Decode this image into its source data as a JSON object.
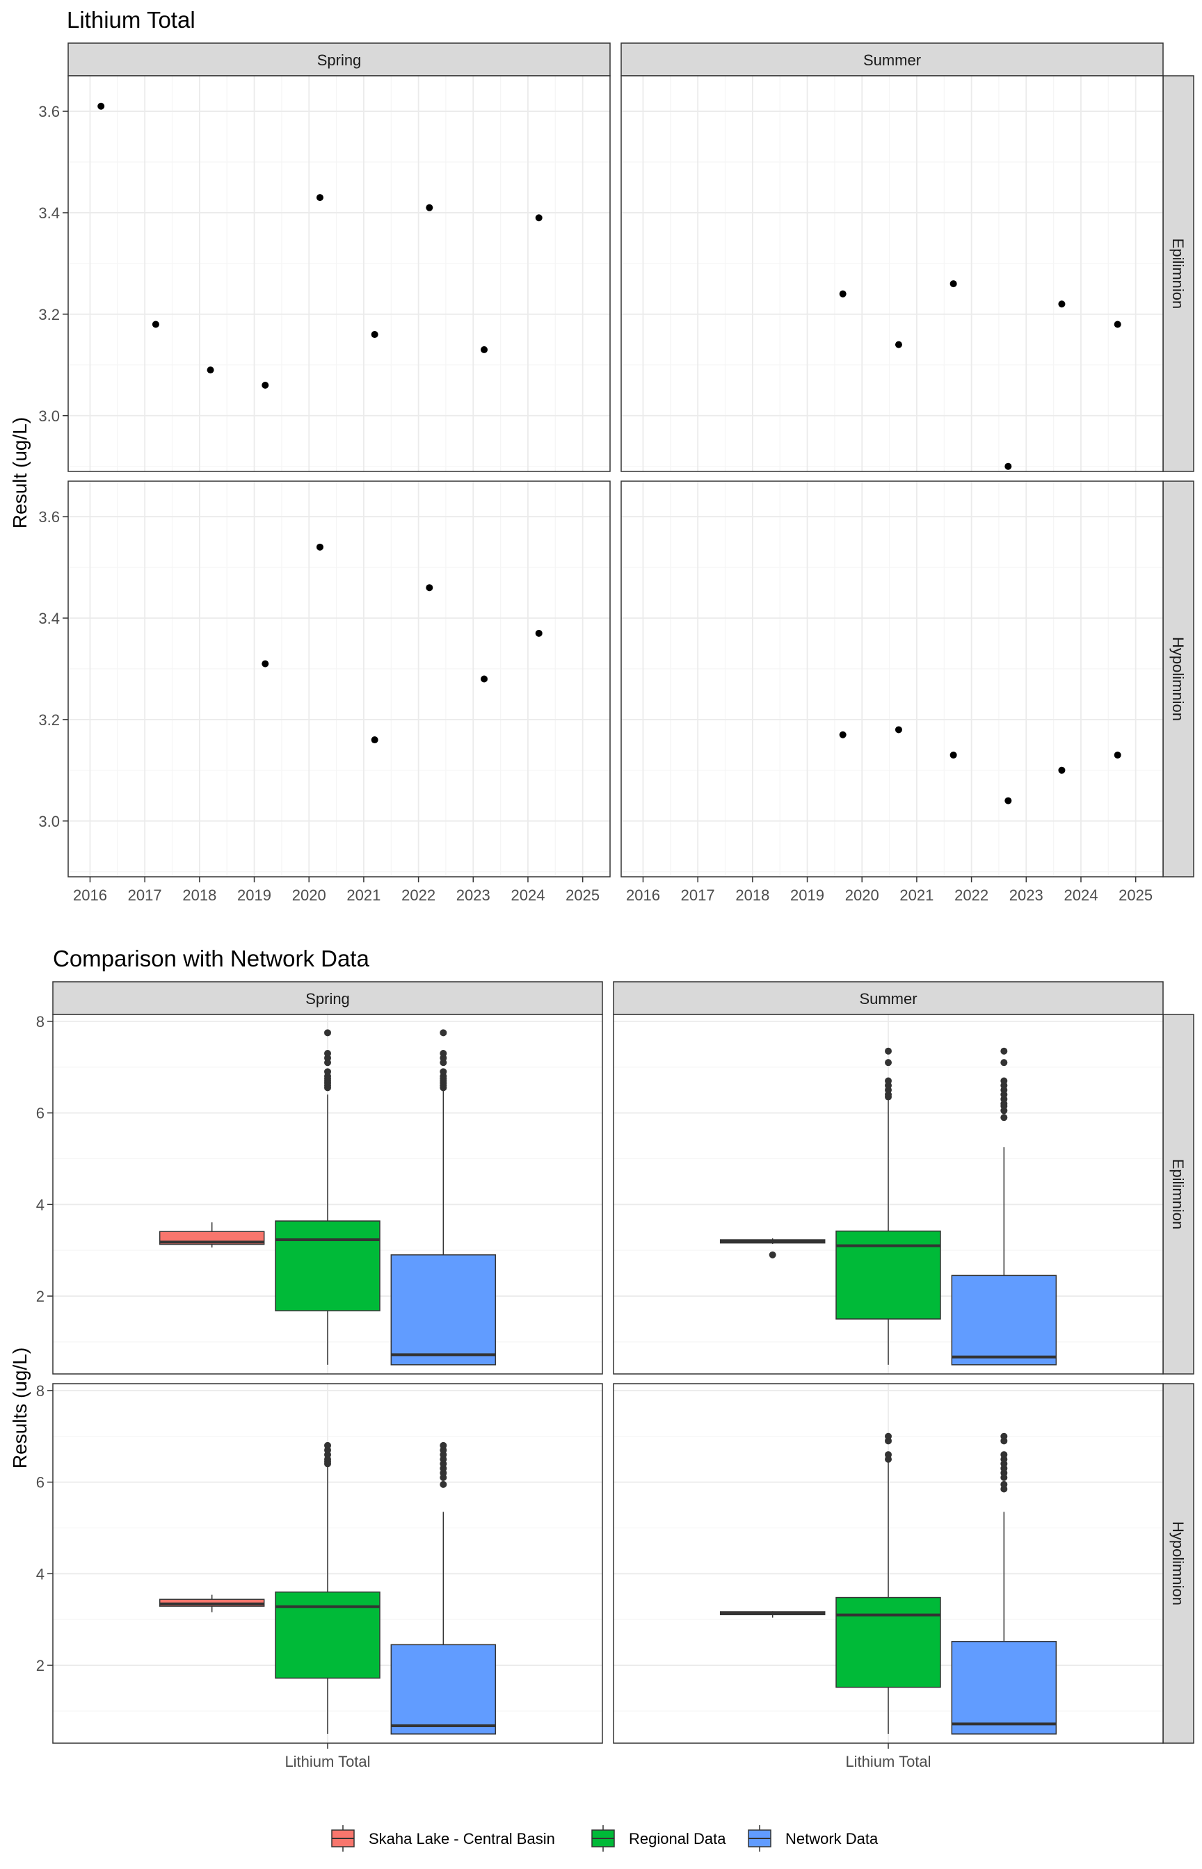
{
  "colors": {
    "strip_bg": "#D9D9D9",
    "grid_major": "#EBEBEB",
    "grid_minor": "#F5F5F5",
    "panel_border": "#333333",
    "point": "#000000",
    "outlier": "#333333",
    "skaha": "#F8766D",
    "regional": "#00BA38",
    "network": "#619CFF"
  },
  "chart_data": [
    {
      "type": "scatter",
      "title": "Lithium Total",
      "ylabel": "Result (ug/L)",
      "xlabel": "",
      "facet_columns": [
        "Spring",
        "Summer"
      ],
      "facet_rows": [
        "Epilimnion",
        "Hypolimnion"
      ],
      "x_ticks": [
        "2016",
        "2017",
        "2018",
        "2019",
        "2020",
        "2021",
        "2022",
        "2023",
        "2024",
        "2025"
      ],
      "y_ticks": [
        "3.0",
        "3.2",
        "3.4",
        "3.6"
      ],
      "xlim": [
        2015.6,
        2025.5
      ],
      "ylim": [
        2.89,
        3.67
      ],
      "grid": true,
      "panels": [
        {
          "column": "Spring",
          "row": "Epilimnion",
          "points": [
            {
              "x": 2016.2,
              "y": 3.61
            },
            {
              "x": 2017.2,
              "y": 3.18
            },
            {
              "x": 2018.2,
              "y": 3.09
            },
            {
              "x": 2019.2,
              "y": 3.06
            },
            {
              "x": 2020.2,
              "y": 3.43
            },
            {
              "x": 2021.2,
              "y": 3.16
            },
            {
              "x": 2022.2,
              "y": 3.41
            },
            {
              "x": 2023.2,
              "y": 3.13
            },
            {
              "x": 2024.2,
              "y": 3.39
            }
          ]
        },
        {
          "column": "Summer",
          "row": "Epilimnion",
          "points": [
            {
              "x": 2019.65,
              "y": 3.24
            },
            {
              "x": 2020.67,
              "y": 3.14
            },
            {
              "x": 2021.67,
              "y": 3.26
            },
            {
              "x": 2022.67,
              "y": 2.9
            },
            {
              "x": 2023.65,
              "y": 3.22
            },
            {
              "x": 2024.67,
              "y": 3.18
            }
          ]
        },
        {
          "column": "Spring",
          "row": "Hypolimnion",
          "points": [
            {
              "x": 2019.2,
              "y": 3.31
            },
            {
              "x": 2020.2,
              "y": 3.54
            },
            {
              "x": 2021.2,
              "y": 3.16
            },
            {
              "x": 2022.2,
              "y": 3.46
            },
            {
              "x": 2023.2,
              "y": 3.28
            },
            {
              "x": 2024.2,
              "y": 3.37
            }
          ]
        },
        {
          "column": "Summer",
          "row": "Hypolimnion",
          "points": [
            {
              "x": 2019.65,
              "y": 3.17
            },
            {
              "x": 2020.67,
              "y": 3.18
            },
            {
              "x": 2021.67,
              "y": 3.13
            },
            {
              "x": 2022.67,
              "y": 3.04
            },
            {
              "x": 2023.65,
              "y": 3.1
            },
            {
              "x": 2024.67,
              "y": 3.13
            }
          ]
        }
      ]
    },
    {
      "type": "box",
      "title": "Comparison with Network Data",
      "ylabel": "Results (ug/L)",
      "xlabel": "",
      "facet_columns": [
        "Spring",
        "Summer"
      ],
      "facet_rows": [
        "Epilimnion",
        "Hypolimnion"
      ],
      "category": "Lithium Total",
      "y_ticks": [
        "2",
        "4",
        "6",
        "8"
      ],
      "ylim": [
        0.3,
        8.15
      ],
      "grid": true,
      "legend_position": "bottom",
      "legend": [
        {
          "name": "Skaha Lake - Central Basin",
          "color_key": "skaha"
        },
        {
          "name": "Regional Data",
          "color_key": "regional"
        },
        {
          "name": "Network Data",
          "color_key": "network"
        }
      ],
      "panels": [
        {
          "column": "Spring",
          "row": "Epilimnion",
          "boxes": [
            {
              "series": "skaha",
              "min": 3.06,
              "q1": 3.13,
              "median": 3.18,
              "q3": 3.41,
              "max": 3.61,
              "outliers": []
            },
            {
              "series": "regional",
              "min": 0.5,
              "q1": 1.68,
              "median": 3.23,
              "q3": 3.64,
              "max": 6.4,
              "outliers": [
                6.55,
                6.6,
                6.65,
                6.7,
                6.75,
                6.8,
                6.9,
                7.1,
                7.2,
                7.3,
                7.75
              ]
            },
            {
              "series": "network",
              "min": 0.5,
              "q1": 0.5,
              "median": 0.72,
              "q3": 2.9,
              "max": 6.5,
              "outliers": [
                6.55,
                6.6,
                6.65,
                6.7,
                6.75,
                6.8,
                6.9,
                7.1,
                7.2,
                7.3,
                7.75
              ]
            }
          ]
        },
        {
          "column": "Summer",
          "row": "Epilimnion",
          "boxes": [
            {
              "series": "skaha",
              "min": 3.14,
              "q1": 3.16,
              "median": 3.2,
              "q3": 3.23,
              "max": 3.26,
              "outliers": [
                2.9
              ]
            },
            {
              "series": "regional",
              "min": 0.5,
              "q1": 1.5,
              "median": 3.1,
              "q3": 3.42,
              "max": 6.3,
              "outliers": [
                6.35,
                6.4,
                6.5,
                6.6,
                6.7,
                7.1,
                7.35
              ]
            },
            {
              "series": "network",
              "min": 0.5,
              "q1": 0.5,
              "median": 0.67,
              "q3": 2.45,
              "max": 5.25,
              "outliers": [
                5.9,
                6.05,
                6.15,
                6.2,
                6.3,
                6.4,
                6.5,
                6.6,
                6.7,
                7.1,
                7.35
              ]
            }
          ]
        },
        {
          "column": "Spring",
          "row": "Hypolimnion",
          "boxes": [
            {
              "series": "skaha",
              "min": 3.16,
              "q1": 3.29,
              "median": 3.34,
              "q3": 3.44,
              "max": 3.54,
              "outliers": []
            },
            {
              "series": "regional",
              "min": 0.5,
              "q1": 1.72,
              "median": 3.28,
              "q3": 3.6,
              "max": 6.35,
              "outliers": [
                6.4,
                6.45,
                6.5,
                6.6,
                6.7,
                6.8
              ]
            },
            {
              "series": "network",
              "min": 0.5,
              "q1": 0.5,
              "median": 0.68,
              "q3": 2.45,
              "max": 5.35,
              "outliers": [
                5.95,
                6.1,
                6.2,
                6.3,
                6.4,
                6.5,
                6.6,
                6.7,
                6.8
              ]
            }
          ]
        },
        {
          "column": "Summer",
          "row": "Hypolimnion",
          "boxes": [
            {
              "series": "skaha",
              "min": 3.04,
              "q1": 3.105,
              "median": 3.13,
              "q3": 3.17,
              "max": 3.18,
              "outliers": []
            },
            {
              "series": "regional",
              "min": 0.5,
              "q1": 1.52,
              "median": 3.1,
              "q3": 3.48,
              "max": 6.45,
              "outliers": [
                6.5,
                6.6,
                6.9,
                7.0
              ]
            },
            {
              "series": "network",
              "min": 0.5,
              "q1": 0.5,
              "median": 0.72,
              "q3": 2.52,
              "max": 5.35,
              "outliers": [
                5.85,
                5.95,
                6.1,
                6.2,
                6.3,
                6.4,
                6.5,
                6.6,
                6.9,
                7.0
              ]
            }
          ]
        }
      ]
    }
  ]
}
